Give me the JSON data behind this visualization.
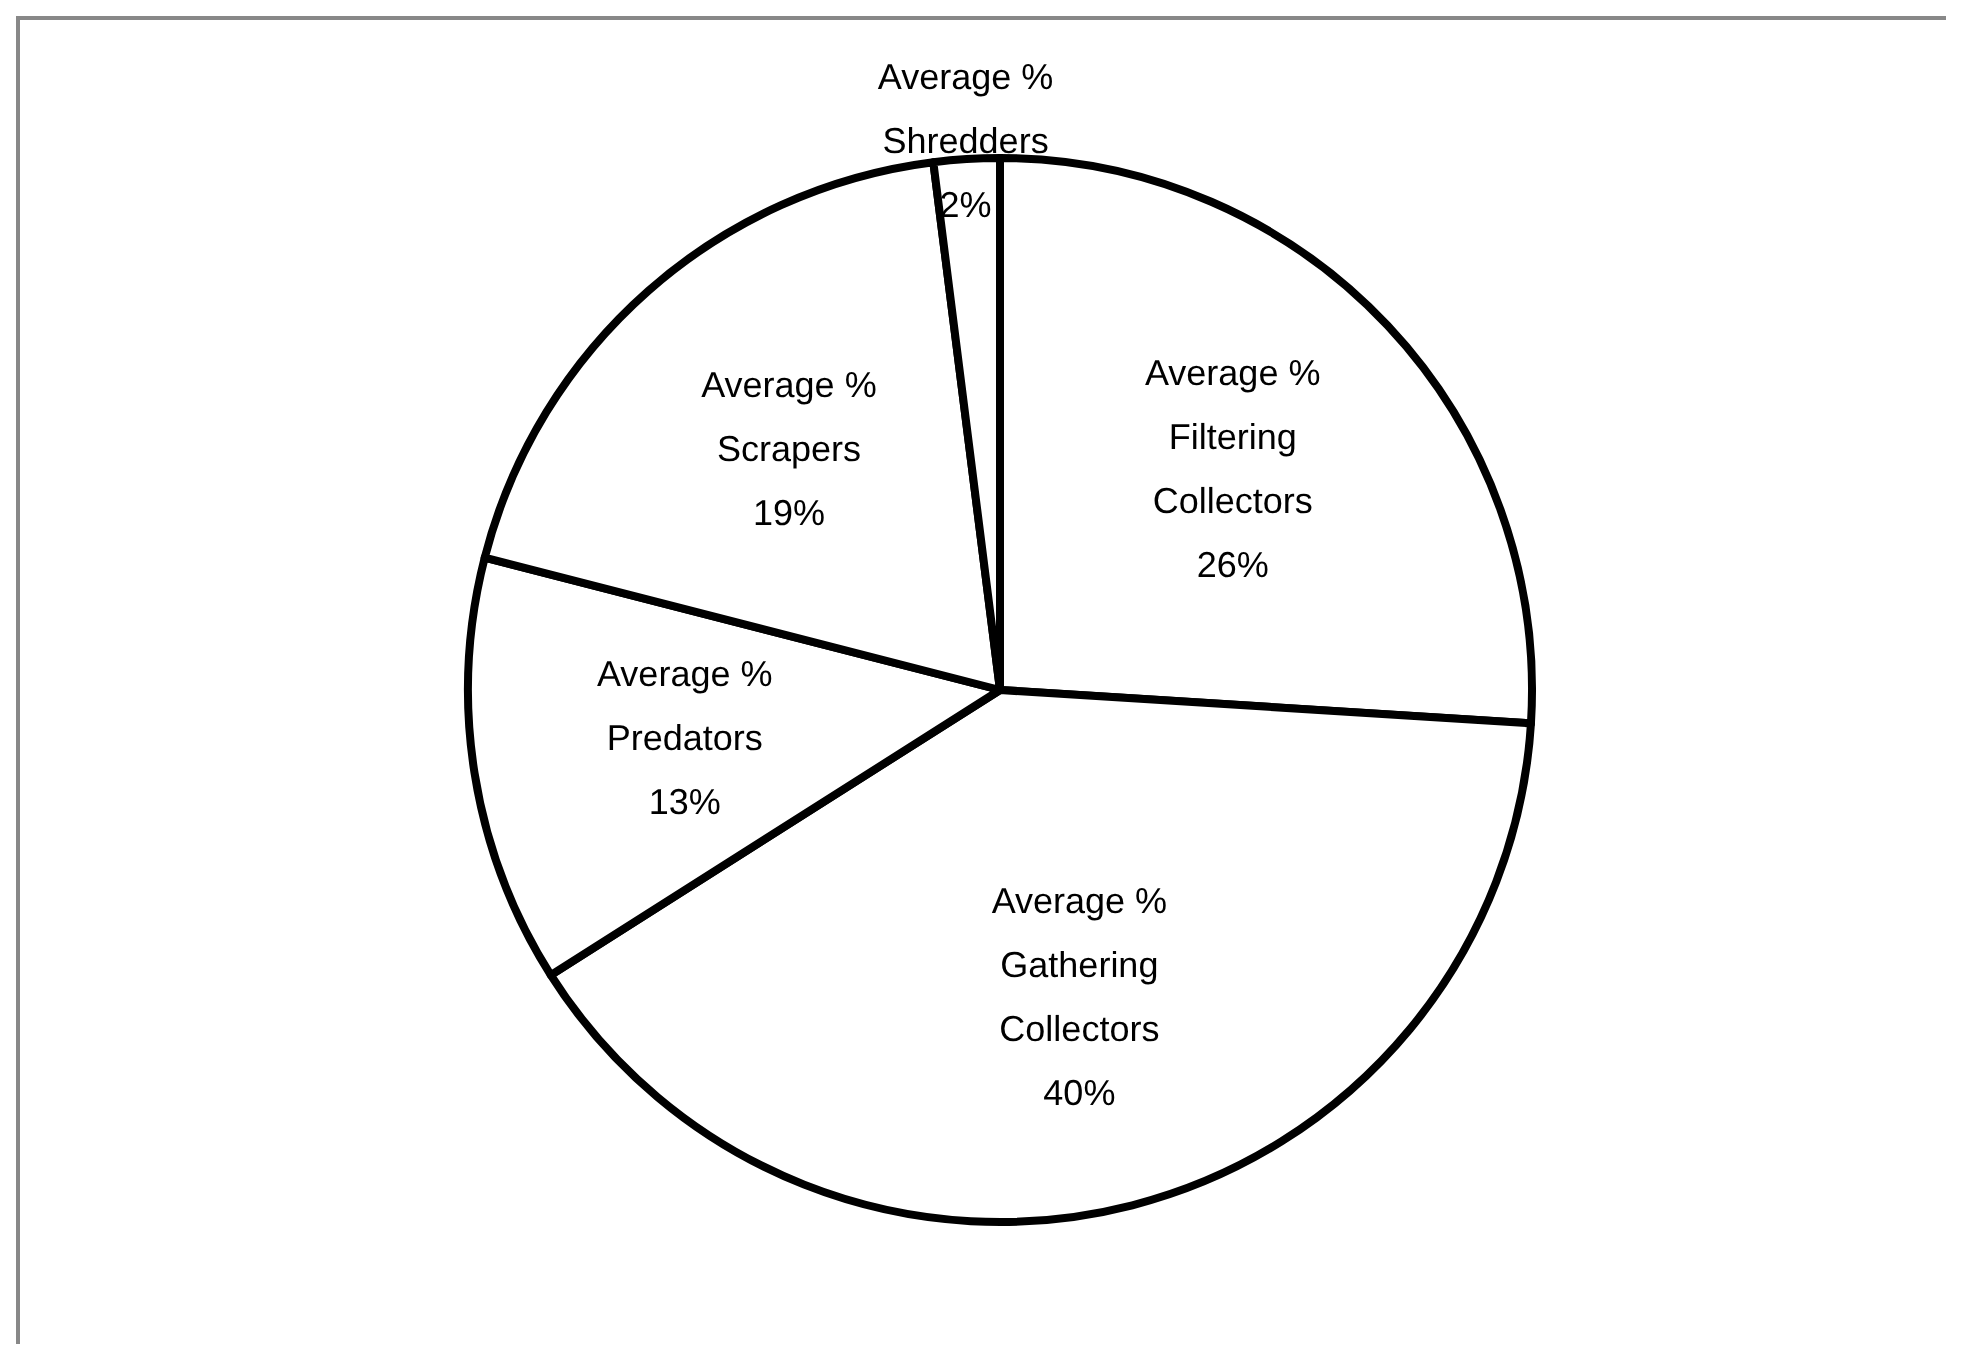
{
  "chart_data": {
    "type": "pie",
    "categories": [
      "Average % Filtering Collectors",
      "Average % Gathering Collectors",
      "Average % Predators",
      "Average % Scrapers",
      "Average % Shredders"
    ],
    "values": [
      26,
      40,
      13,
      19,
      2
    ],
    "colors": [
      "#ffffff",
      "#ffffff",
      "#ffffff",
      "#ffffff",
      "#ffffff"
    ],
    "value_labels": [
      "26%",
      "40%",
      "13%",
      "19%",
      "2%"
    ],
    "legend": false
  }
}
